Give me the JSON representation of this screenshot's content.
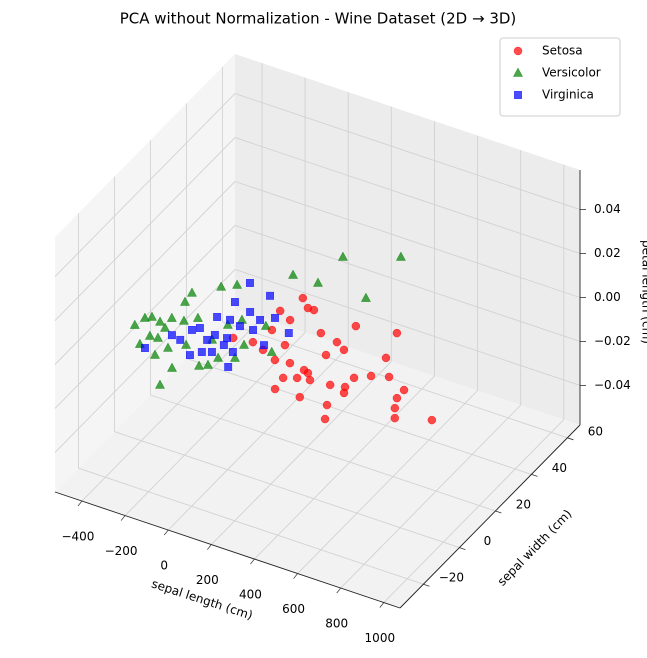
{
  "chart_data": {
    "type": "scatter3d",
    "title": "PCA without Normalization - Wine Dataset (2D → 3D)",
    "xlabel": "sepal length (cm)",
    "ylabel": "sepal width (cm)",
    "zlabel": "petal length (cm)",
    "xlim": [
      -525,
      1075
    ],
    "ylim": [
      -33,
      67
    ],
    "zlim": [
      -0.058,
      0.058
    ],
    "xticks": [
      {
        "value": -400,
        "label": "−400"
      },
      {
        "value": -200,
        "label": "−200"
      },
      0,
      200,
      400,
      600,
      800,
      1000
    ],
    "yticks": [
      {
        "value": -20,
        "label": "−20"
      },
      0,
      20,
      40,
      60
    ],
    "zticks": [
      {
        "value": -0.04,
        "label": "−0.04"
      },
      {
        "value": -0.02,
        "label": "−0.02"
      },
      {
        "value": 0,
        "label": "0.00"
      },
      0.02,
      0.04
    ],
    "grid": true,
    "legend": "upper right",
    "series": [
      {
        "name": "Setosa",
        "color": "#ff0000",
        "marker": "circle",
        "x": [
          111,
          163,
          76,
          142,
          294,
          392,
          559,
          381,
          88,
          150,
          210,
          387,
          432,
          606,
          362,
          289,
          226,
          316,
          365,
          417,
          563,
          504,
          563,
          616,
          682,
          779,
          326,
          440,
          562,
          580,
          603,
          809,
          843,
          979,
          782,
          5,
          386,
          191,
          113
        ],
        "y": [
          28.5,
          25.1,
          20.1,
          17.7,
          16.6,
          24.3,
          27.1,
          15.1,
          3.5,
          1.7,
          6.7,
          8.3,
          12.9,
          15.4,
          -0.9,
          0,
          -0.8,
          -7,
          -5.1,
          -4.2,
          -2.2,
          -3.4,
          2.8,
          5.9,
          8,
          4.7,
          -12.7,
          -12.6,
          -12.1,
          -4.8,
          -18.1,
          -4,
          -8.1,
          -3.8,
          0.4,
          2.5,
          -1.6,
          25.1,
          11.1
        ],
        "z": [
          0,
          0,
          0,
          0,
          0,
          0,
          0,
          0,
          0,
          0,
          0,
          0,
          0,
          0,
          0,
          0,
          0,
          0,
          0,
          0,
          0,
          0,
          0,
          0,
          0,
          0,
          0,
          0,
          0,
          0,
          0,
          0,
          0,
          0,
          0,
          0,
          0,
          0,
          0
        ]
      },
      {
        "name": "Versicolor",
        "color": "#008000",
        "marker": "triangle",
        "x": [
          110,
          312,
          -2,
          112,
          331,
          -163,
          -212,
          -293,
          -286,
          -382,
          -371,
          -350,
          -267,
          -225,
          -186,
          -188,
          -299,
          -209,
          -89,
          -105,
          -18,
          10,
          21,
          80,
          67,
          78,
          188,
          -62,
          -257,
          -135,
          -26,
          -305,
          -277,
          -292,
          -58
        ],
        "y": [
          50.9,
          58.9,
          36.6,
          36.8,
          37.2,
          24.8,
          21.8,
          15.3,
          10.6,
          -5.8,
          -1.5,
          -0.1,
          -2.8,
          2.7,
          5.8,
          -10.6,
          -12.9,
          -15.3,
          -26.9,
          -18.3,
          -13.7,
          -12.1,
          -7.8,
          -5.5,
          1.1,
          11.9,
          2,
          -1.2,
          -7.9,
          -6.9,
          11.1,
          -1,
          2.2,
          -8.2,
          7.1
        ],
        "z": [
          0,
          0,
          0,
          0,
          0,
          0,
          0,
          0,
          0,
          0,
          0,
          0,
          0,
          0,
          0,
          0,
          0,
          0,
          0,
          0,
          0,
          0,
          0,
          0,
          0,
          0,
          0,
          0,
          0,
          0,
          0,
          0,
          0,
          0,
          0
        ]
      },
      {
        "name": "Virginica",
        "color": "#0000ff",
        "marker": "square",
        "x": [
          -125,
          -11,
          -112,
          -25,
          -123,
          -68,
          -12,
          37,
          -145,
          -166,
          -69,
          -79,
          -16,
          47,
          182,
          -3,
          52,
          -21,
          -87,
          -56,
          -173,
          -268,
          87,
          137,
          82,
          -218
        ],
        "y": [
          27.4,
          24.9,
          17.5,
          15.5,
          8.9,
          9.5,
          8.3,
          13.6,
          2,
          0.1,
          1.2,
          -1.9,
          1.6,
          8.5,
          12.2,
          -1.7,
          -3.3,
          -6.2,
          -10.5,
          -7.6,
          -5.6,
          -13.8,
          -10.1,
          3.8,
          16.5,
          -4.8
        ],
        "z": [
          0,
          0,
          0,
          0,
          0,
          0,
          0,
          0,
          0,
          0,
          0,
          0,
          0,
          0,
          0,
          0,
          0,
          0,
          0,
          0,
          0,
          0,
          0,
          0,
          0,
          0
        ]
      }
    ]
  }
}
